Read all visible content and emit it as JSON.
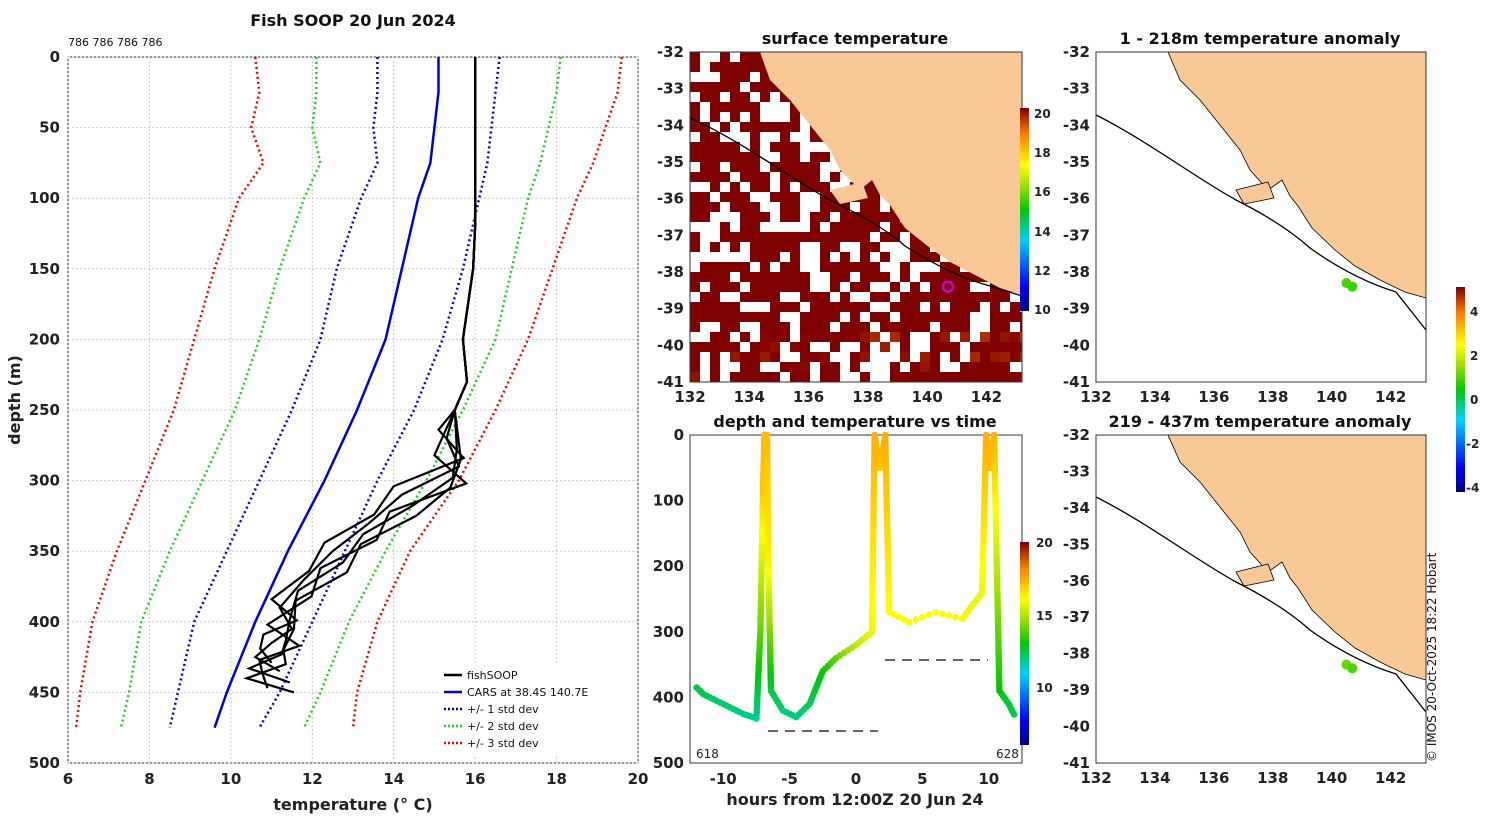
{
  "colors": {
    "land": "#f8c896",
    "fishsoop": "#000000",
    "cars": "#0000dd",
    "std1": "#0000dd",
    "std2": "#22cc22",
    "std3": "#ee0000",
    "marker": "#cc00cc"
  },
  "profile_panel": {
    "title": "Fish SOOP 20 Jun 2024",
    "top_note": "786 786 786 786",
    "legend": {
      "fishsoop": "fishSOOP",
      "cars": "CARS at 38.4S 140.7E",
      "std1": "+/- 1 std dev",
      "std2": "+/- 2 std dev",
      "std3": "+/- 3 std dev"
    }
  },
  "map_top": {
    "title": "surface temperature",
    "colorbar_ticks": [
      "20",
      "18",
      "16",
      "14",
      "12",
      "10"
    ]
  },
  "time_panel": {
    "title": "depth and temperature vs time",
    "left_id": "618",
    "right_id": "628",
    "colorbar_ticks": [
      "20",
      "15",
      "10"
    ]
  },
  "anom_top": {
    "title": "1 - 218m temperature anomaly"
  },
  "anom_bottom": {
    "title": "219 - 437m temperature anomaly"
  },
  "anom_colorbar": {
    "ticks": [
      "4",
      "2",
      "0",
      "-2",
      "-4"
    ]
  },
  "credit": "© IMOS 20-Oct-2025 18:22 Hobart",
  "chart_data": [
    {
      "type": "line",
      "title": "Fish SOOP 20 Jun 2024",
      "xlabel": "temperature (° C)",
      "ylabel": "depth (m)",
      "xlim": [
        6,
        20
      ],
      "ylim": [
        500,
        0
      ],
      "xticks": [
        "6",
        "8",
        "10",
        "12",
        "14",
        "16",
        "18",
        "20"
      ],
      "yticks": [
        "0",
        "50",
        "100",
        "150",
        "200",
        "250",
        "300",
        "350",
        "400",
        "450",
        "500"
      ],
      "depth": [
        0,
        25,
        50,
        75,
        100,
        150,
        200,
        250,
        300,
        350,
        400,
        450,
        475
      ],
      "series": [
        {
          "name": "CARS at 38.4S 140.7E",
          "values": [
            15.1,
            15.1,
            15.0,
            14.9,
            14.6,
            14.2,
            13.8,
            13.1,
            12.3,
            11.4,
            10.6,
            9.9,
            9.6
          ]
        },
        {
          "name": "+1 std dev",
          "values": [
            16.6,
            16.5,
            16.4,
            16.3,
            16.1,
            15.7,
            15.2,
            14.5,
            13.6,
            12.8,
            12.0,
            11.2,
            10.7
          ]
        },
        {
          "name": "-1 std dev",
          "values": [
            13.6,
            13.6,
            13.5,
            13.6,
            13.2,
            12.6,
            12.2,
            11.5,
            10.7,
            9.9,
            9.1,
            8.7,
            8.5
          ]
        },
        {
          "name": "+2 std dev",
          "values": [
            18.1,
            18.0,
            17.8,
            17.6,
            17.3,
            16.9,
            16.5,
            15.7,
            14.8,
            13.8,
            12.9,
            12.2,
            11.8
          ]
        },
        {
          "name": "-2 std dev",
          "values": [
            12.1,
            12.1,
            12.0,
            12.2,
            11.8,
            11.2,
            10.7,
            10.1,
            9.3,
            8.5,
            7.8,
            7.5,
            7.3
          ]
        },
        {
          "name": "+3 std dev",
          "values": [
            19.6,
            19.5,
            19.2,
            18.9,
            18.5,
            17.9,
            17.3,
            16.5,
            15.6,
            14.4,
            13.6,
            13.1,
            13.0
          ]
        },
        {
          "name": "-3 std dev",
          "values": [
            10.6,
            10.7,
            10.5,
            10.8,
            10.2,
            9.6,
            9.1,
            8.6,
            7.9,
            7.2,
            6.6,
            6.3,
            6.2
          ]
        }
      ],
      "fishsoop_profile": {
        "temperature": [
          16.0,
          16.0,
          16.0,
          16.0,
          15.95,
          15.8,
          15.7,
          15.8,
          15.5,
          15.3,
          15.6,
          14.2,
          13.4,
          12.5,
          11.8,
          11.2,
          11.5,
          11.0,
          10.6,
          11.2
        ],
        "depth": [
          0,
          40,
          80,
          120,
          150,
          180,
          200,
          230,
          250,
          270,
          290,
          310,
          330,
          350,
          370,
          390,
          405,
          415,
          425,
          435
        ]
      }
    },
    {
      "type": "heatmap",
      "title": "surface temperature",
      "xlim": [
        132,
        143.2
      ],
      "ylim": [
        -41,
        -32
      ],
      "xticks": [
        "132",
        "134",
        "136",
        "138",
        "140",
        "142"
      ],
      "yticks": [
        "-32",
        "-33",
        "-34",
        "-35",
        "-36",
        "-37",
        "-38",
        "-39",
        "-40",
        "-41"
      ],
      "colorbar_range": [
        10,
        20.5
      ],
      "marker": {
        "lon": 140.7,
        "lat": -38.4
      }
    },
    {
      "type": "scatter",
      "title": "depth and temperature vs time",
      "xlabel": "hours from 12:00Z 20 Jun 24",
      "xlim": [
        -12.5,
        12.5
      ],
      "ylim": [
        500,
        0
      ],
      "xticks": [
        "-10",
        "-5",
        "0",
        "5",
        "10"
      ],
      "yticks": [
        "0",
        "100",
        "200",
        "300",
        "400",
        "500"
      ],
      "colorbar_range": [
        5,
        20
      ],
      "track": [
        {
          "t": -12.0,
          "d": 385,
          "temp": 12.0
        },
        {
          "t": -11.5,
          "d": 395,
          "temp": 11.8
        },
        {
          "t": -10.5,
          "d": 405,
          "temp": 11.6
        },
        {
          "t": -9.5,
          "d": 415,
          "temp": 11.5
        },
        {
          "t": -8.5,
          "d": 425,
          "temp": 11.3
        },
        {
          "t": -7.5,
          "d": 432,
          "temp": 11.2
        },
        {
          "t": -7.2,
          "d": 300,
          "temp": 13.5
        },
        {
          "t": -7.0,
          "d": 80,
          "temp": 16.8
        },
        {
          "t": -6.9,
          "d": 0,
          "temp": 17.0
        },
        {
          "t": -6.7,
          "d": 0,
          "temp": 17.0
        },
        {
          "t": -6.6,
          "d": 200,
          "temp": 16.0
        },
        {
          "t": -6.4,
          "d": 390,
          "temp": 12.0
        },
        {
          "t": -5.5,
          "d": 420,
          "temp": 11.5
        },
        {
          "t": -4.5,
          "d": 430,
          "temp": 11.3
        },
        {
          "t": -3.5,
          "d": 410,
          "temp": 11.8
        },
        {
          "t": -2.5,
          "d": 360,
          "temp": 12.5
        },
        {
          "t": -1.5,
          "d": 340,
          "temp": 13.5
        },
        {
          "t": 0.0,
          "d": 320,
          "temp": 14.8
        },
        {
          "t": 1.2,
          "d": 300,
          "temp": 15.5
        },
        {
          "t": 1.4,
          "d": 0,
          "temp": 17.2
        },
        {
          "t": 1.8,
          "d": 50,
          "temp": 16.9
        },
        {
          "t": 2.2,
          "d": 0,
          "temp": 17.2
        },
        {
          "t": 2.5,
          "d": 270,
          "temp": 15.8
        },
        {
          "t": 4.0,
          "d": 285,
          "temp": 15.9
        },
        {
          "t": 6.0,
          "d": 270,
          "temp": 15.8
        },
        {
          "t": 8.0,
          "d": 280,
          "temp": 15.6
        },
        {
          "t": 9.5,
          "d": 240,
          "temp": 15.5
        },
        {
          "t": 9.8,
          "d": 0,
          "temp": 17.2
        },
        {
          "t": 10.1,
          "d": 50,
          "temp": 17.0
        },
        {
          "t": 10.4,
          "d": 0,
          "temp": 17.2
        },
        {
          "t": 10.8,
          "d": 390,
          "temp": 12.5
        },
        {
          "t": 11.5,
          "d": 410,
          "temp": 12.0
        },
        {
          "t": 12.0,
          "d": 430,
          "temp": 11.8
        }
      ]
    },
    {
      "type": "scatter",
      "title": "1 - 218m temperature anomaly",
      "xlim": [
        132,
        143.2
      ],
      "ylim": [
        -41,
        -32
      ],
      "xticks": [
        "132",
        "134",
        "136",
        "138",
        "140",
        "142"
      ],
      "yticks": [
        "-32",
        "-33",
        "-34",
        "-35",
        "-36",
        "-37",
        "-38",
        "-39",
        "-40",
        "-41"
      ],
      "points": [
        {
          "lon": 140.5,
          "lat": -38.3,
          "anomaly": 1.0
        },
        {
          "lon": 140.7,
          "lat": -38.4,
          "anomaly": 0.9
        }
      ],
      "colorbar_range": [
        -4,
        5
      ]
    },
    {
      "type": "scatter",
      "title": "219 - 437m temperature anomaly",
      "xlim": [
        132,
        143.2
      ],
      "ylim": [
        -41,
        -32
      ],
      "xticks": [
        "132",
        "134",
        "136",
        "138",
        "140",
        "142"
      ],
      "yticks": [
        "-32",
        "-33",
        "-34",
        "-35",
        "-36",
        "-37",
        "-38",
        "-39",
        "-40",
        "-41"
      ],
      "points": [
        {
          "lon": 140.5,
          "lat": -38.3,
          "anomaly": 1.2
        },
        {
          "lon": 140.7,
          "lat": -38.4,
          "anomaly": 1.0
        }
      ],
      "colorbar_range": [
        -4,
        5
      ]
    }
  ]
}
